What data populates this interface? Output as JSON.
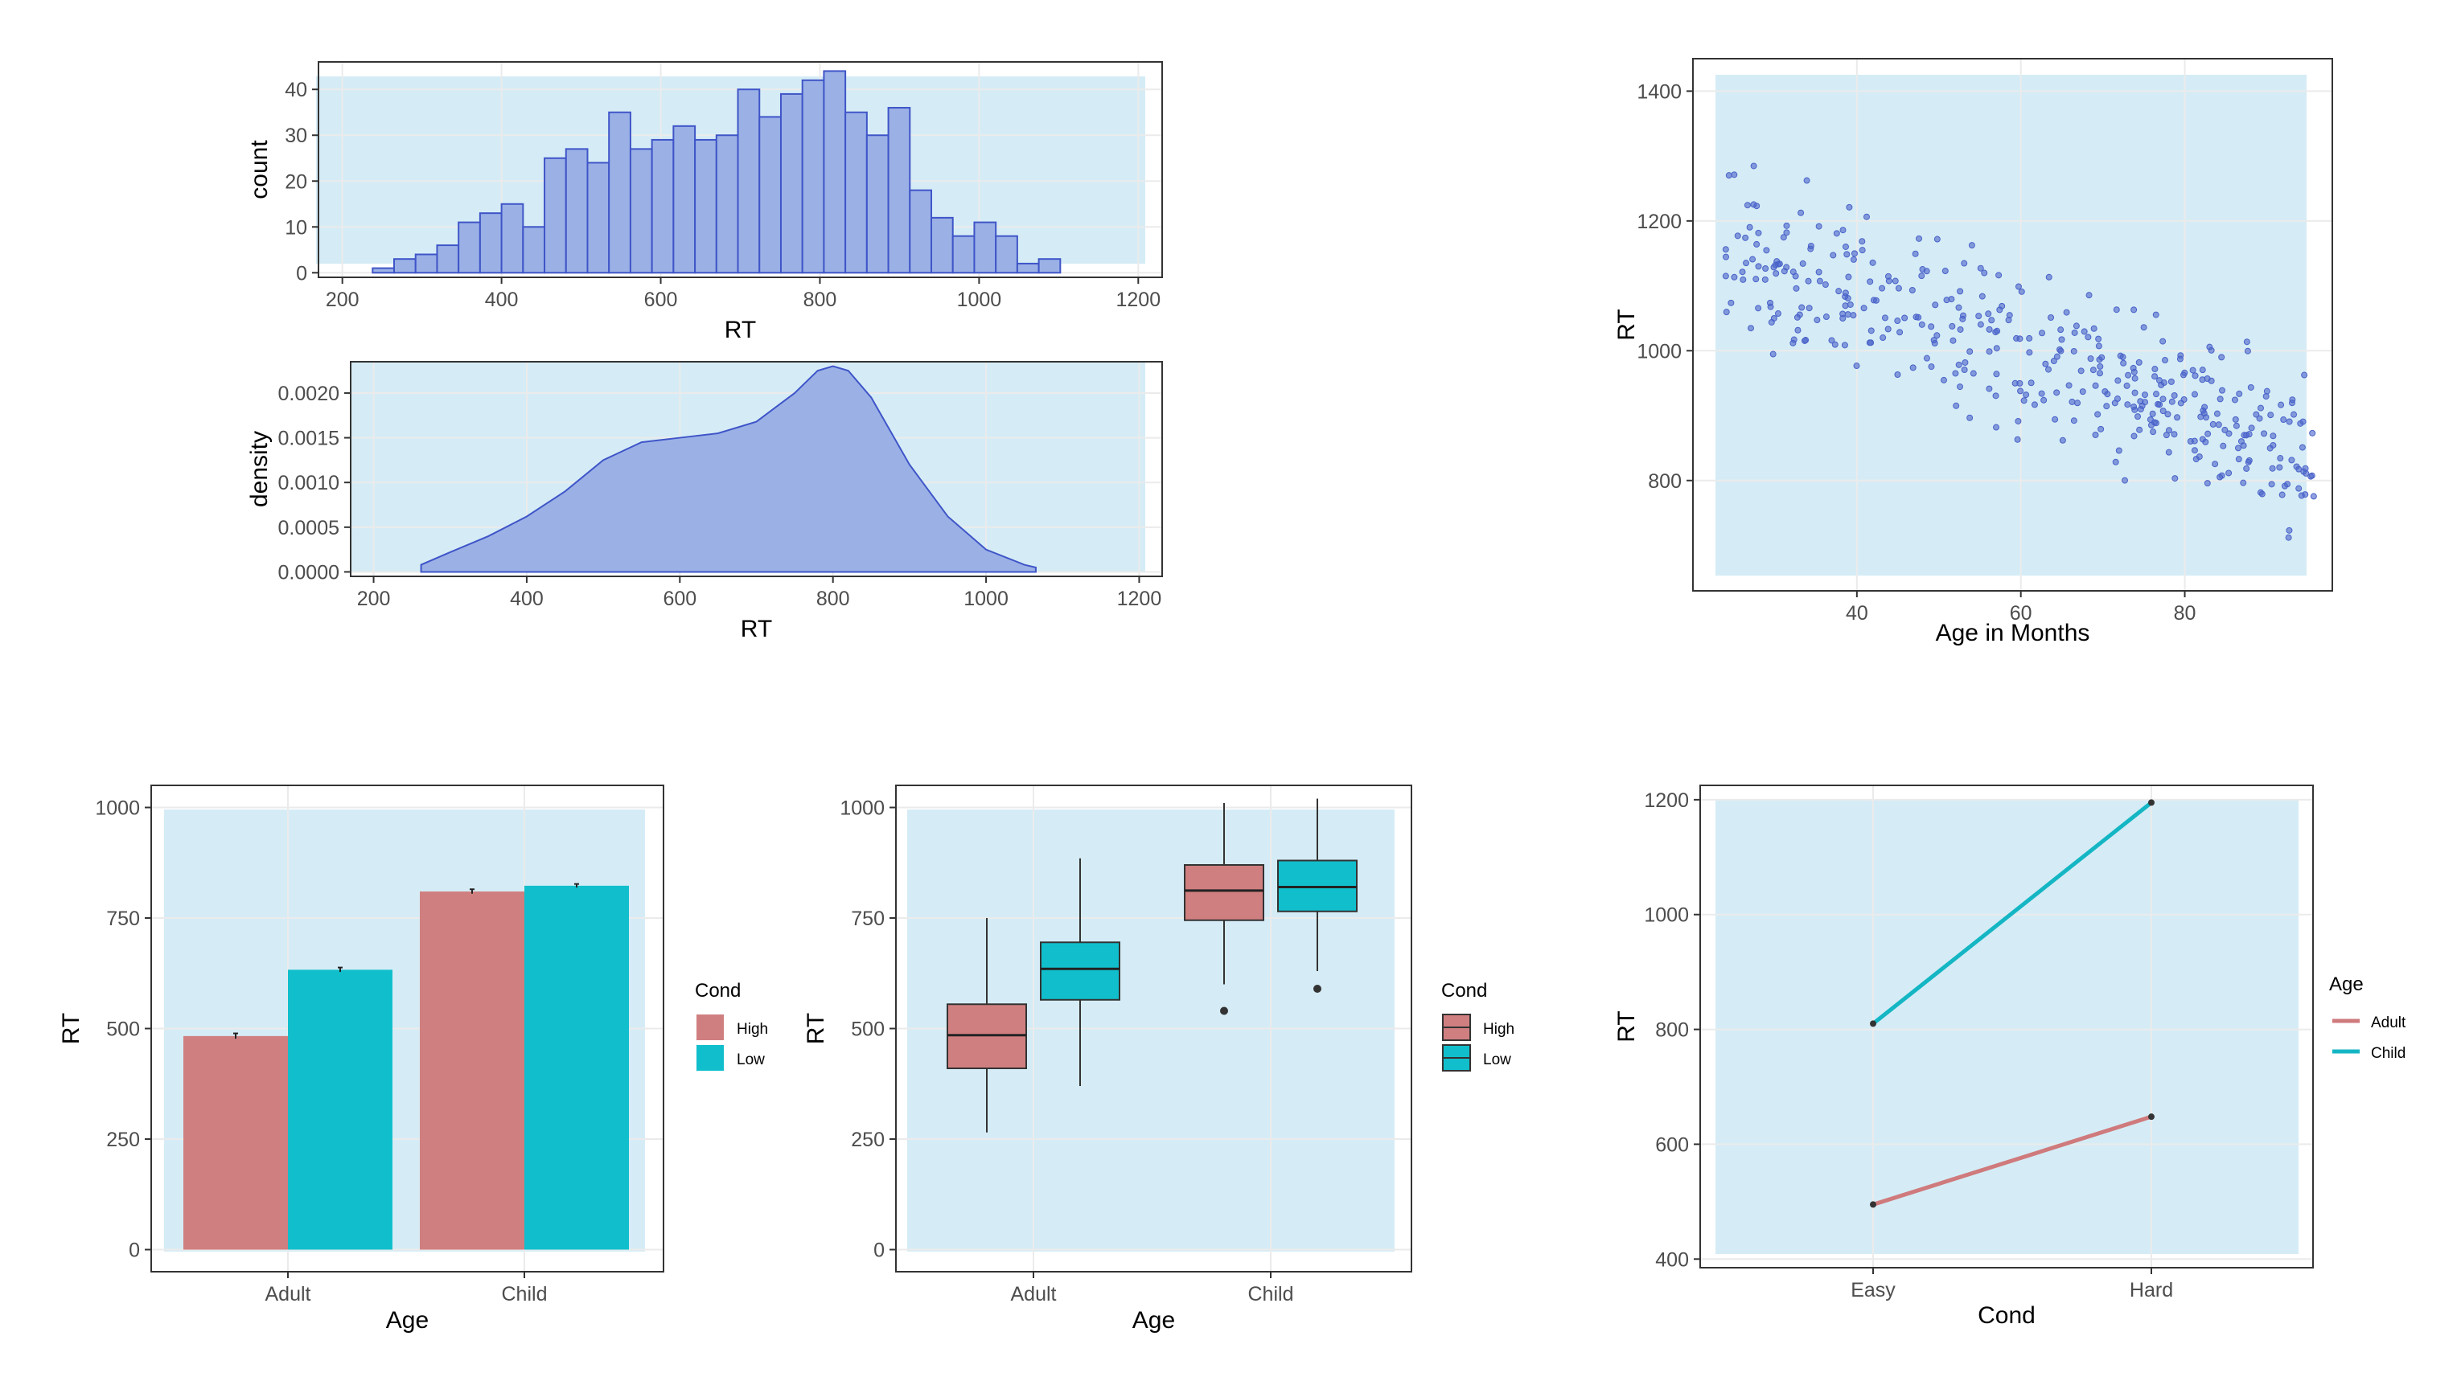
{
  "colors": {
    "panel_band": "#d5ecf6",
    "grid": "#ebebeb",
    "hist_fill": "#9bb1e6",
    "hist_stroke": "#3f55c8",
    "point": "#4a63c9",
    "high": "#d07f80",
    "low": "#11bfcc",
    "adult_line": "#cf7a7c",
    "child_line": "#15b6c4"
  },
  "chart_data": [
    {
      "id": "histogram",
      "type": "bar",
      "xlabel": "RT",
      "ylabel": "count",
      "xlim": [
        170,
        1230
      ],
      "ylim": [
        -1,
        46
      ],
      "xticks": [
        200,
        400,
        600,
        800,
        1000,
        1200
      ],
      "yticks": [
        0,
        10,
        20,
        30,
        40
      ],
      "bins": [
        {
          "x0": 238,
          "x1": 265,
          "count": 1
        },
        {
          "x0": 265,
          "x1": 292,
          "count": 3
        },
        {
          "x0": 292,
          "x1": 319,
          "count": 4
        },
        {
          "x0": 319,
          "x1": 346,
          "count": 6
        },
        {
          "x0": 346,
          "x1": 373,
          "count": 11
        },
        {
          "x0": 373,
          "x1": 400,
          "count": 13
        },
        {
          "x0": 400,
          "x1": 427,
          "count": 15
        },
        {
          "x0": 427,
          "x1": 454,
          "count": 10
        },
        {
          "x0": 454,
          "x1": 481,
          "count": 25
        },
        {
          "x0": 481,
          "x1": 508,
          "count": 27
        },
        {
          "x0": 508,
          "x1": 535,
          "count": 24
        },
        {
          "x0": 535,
          "x1": 562,
          "count": 35
        },
        {
          "x0": 562,
          "x1": 589,
          "count": 27
        },
        {
          "x0": 589,
          "x1": 616,
          "count": 29
        },
        {
          "x0": 616,
          "x1": 643,
          "count": 32
        },
        {
          "x0": 643,
          "x1": 670,
          "count": 29
        },
        {
          "x0": 670,
          "x1": 697,
          "count": 30
        },
        {
          "x0": 697,
          "x1": 724,
          "count": 40
        },
        {
          "x0": 724,
          "x1": 751,
          "count": 34
        },
        {
          "x0": 751,
          "x1": 778,
          "count": 39
        },
        {
          "x0": 778,
          "x1": 805,
          "count": 42
        },
        {
          "x0": 805,
          "x1": 832,
          "count": 44
        },
        {
          "x0": 832,
          "x1": 859,
          "count": 35
        },
        {
          "x0": 859,
          "x1": 886,
          "count": 30
        },
        {
          "x0": 886,
          "x1": 913,
          "count": 36
        },
        {
          "x0": 913,
          "x1": 940,
          "count": 18
        },
        {
          "x0": 940,
          "x1": 967,
          "count": 12
        },
        {
          "x0": 967,
          "x1": 994,
          "count": 8
        },
        {
          "x0": 994,
          "x1": 1021,
          "count": 11
        },
        {
          "x0": 1021,
          "x1": 1048,
          "count": 8
        },
        {
          "x0": 1048,
          "x1": 1075,
          "count": 2
        },
        {
          "x0": 1075,
          "x1": 1102,
          "count": 3
        }
      ]
    },
    {
      "id": "density",
      "type": "area",
      "xlabel": "RT",
      "ylabel": "density",
      "xlim": [
        170,
        1230
      ],
      "ylim": [
        -5e-05,
        0.00235
      ],
      "xticks": [
        200,
        400,
        600,
        800,
        1000,
        1200
      ],
      "yticks": [
        0,
        0.0005,
        0.001,
        0.0015,
        0.002
      ],
      "ytick_labels": [
        "0.0000",
        "0.0005",
        "0.0010",
        "0.0015",
        "0.0020"
      ],
      "x": [
        262,
        300,
        350,
        400,
        450,
        500,
        550,
        600,
        650,
        700,
        750,
        780,
        800,
        820,
        850,
        900,
        950,
        1000,
        1050,
        1065
      ],
      "y": [
        8e-05,
        0.00022,
        0.0004,
        0.00062,
        0.0009,
        0.00125,
        0.00145,
        0.0015,
        0.00155,
        0.00168,
        0.002,
        0.00225,
        0.0023,
        0.00225,
        0.00195,
        0.0012,
        0.00062,
        0.00025,
        8e-05,
        5e-05
      ]
    },
    {
      "id": "scatter",
      "type": "scatter",
      "xlabel": "Age in Months",
      "ylabel": "RT",
      "xlim": [
        20,
        98
      ],
      "ylim": [
        630,
        1450
      ],
      "xticks": [
        40,
        60,
        80
      ],
      "yticks": [
        800,
        1000,
        1200,
        1400
      ],
      "trend": {
        "x0": 24,
        "x1": 96,
        "y_start": 1165,
        "y_end": 830,
        "spread": 85
      },
      "n_points": 400
    },
    {
      "id": "bar_means",
      "type": "bar",
      "xlabel": "Age",
      "ylabel": "RT",
      "categories": [
        "Adult",
        "Child"
      ],
      "ylim": [
        -50,
        1050
      ],
      "yticks": [
        0,
        250,
        500,
        750,
        1000
      ],
      "legend_title": "Cond",
      "series": [
        {
          "name": "High",
          "values": [
            483,
            810
          ],
          "errors": [
            6,
            5
          ]
        },
        {
          "name": "Low",
          "values": [
            633,
            823
          ],
          "errors": [
            5,
            4
          ]
        }
      ]
    },
    {
      "id": "boxplot",
      "type": "bar",
      "xlabel": "Age",
      "ylabel": "RT",
      "categories": [
        "Adult",
        "Child"
      ],
      "ylim": [
        -50,
        1050
      ],
      "yticks": [
        0,
        250,
        500,
        750,
        1000
      ],
      "legend_title": "Cond",
      "series": [
        {
          "name": "High",
          "boxes": [
            {
              "min": 265,
              "q1": 410,
              "median": 485,
              "q3": 555,
              "max": 750,
              "outliers": []
            },
            {
              "min": 600,
              "q1": 745,
              "median": 812,
              "q3": 870,
              "max": 1010,
              "outliers": [
                540
              ]
            }
          ]
        },
        {
          "name": "Low",
          "boxes": [
            {
              "min": 370,
              "q1": 565,
              "median": 635,
              "q3": 695,
              "max": 885,
              "outliers": []
            },
            {
              "min": 630,
              "q1": 765,
              "median": 820,
              "q3": 880,
              "max": 1020,
              "outliers": [
                590
              ]
            }
          ]
        }
      ]
    },
    {
      "id": "interaction",
      "type": "line",
      "xlabel": "Cond",
      "ylabel": "RT",
      "categories": [
        "Easy",
        "Hard"
      ],
      "ylim": [
        385,
        1225
      ],
      "yticks": [
        400,
        600,
        800,
        1000,
        1200
      ],
      "legend_title": "Age",
      "series": [
        {
          "name": "Adult",
          "values": [
            495,
            648
          ]
        },
        {
          "name": "Child",
          "values": [
            810,
            1195
          ]
        }
      ]
    }
  ]
}
